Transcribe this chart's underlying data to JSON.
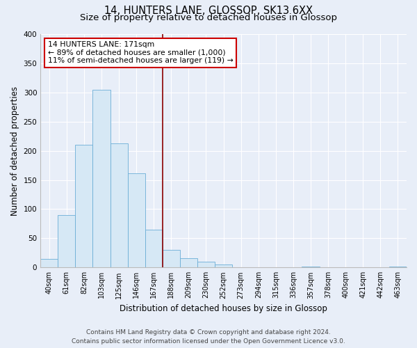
{
  "title": "14, HUNTERS LANE, GLOSSOP, SK13 6XX",
  "subtitle": "Size of property relative to detached houses in Glossop",
  "xlabel": "Distribution of detached houses by size in Glossop",
  "ylabel": "Number of detached properties",
  "bar_labels": [
    "40sqm",
    "61sqm",
    "82sqm",
    "103sqm",
    "125sqm",
    "146sqm",
    "167sqm",
    "188sqm",
    "209sqm",
    "230sqm",
    "252sqm",
    "273sqm",
    "294sqm",
    "315sqm",
    "336sqm",
    "357sqm",
    "378sqm",
    "400sqm",
    "421sqm",
    "442sqm",
    "463sqm"
  ],
  "bar_values": [
    15,
    90,
    210,
    305,
    213,
    162,
    65,
    30,
    16,
    10,
    5,
    0,
    0,
    0,
    0,
    2,
    0,
    0,
    0,
    0,
    2
  ],
  "bar_color": "#d6e8f5",
  "bar_edge_color": "#6baed6",
  "vline_x_index": 6,
  "vline_color": "#8b0000",
  "ylim": [
    0,
    400
  ],
  "yticks": [
    0,
    50,
    100,
    150,
    200,
    250,
    300,
    350,
    400
  ],
  "annotation_title": "14 HUNTERS LANE: 171sqm",
  "annotation_line1": "← 89% of detached houses are smaller (1,000)",
  "annotation_line2": "11% of semi-detached houses are larger (119) →",
  "annotation_box_color": "#ffffff",
  "annotation_box_edge": "#cc0000",
  "footer1": "Contains HM Land Registry data © Crown copyright and database right 2024.",
  "footer2": "Contains public sector information licensed under the Open Government Licence v3.0.",
  "bg_color": "#e8eef8",
  "plot_bg_color": "#e8eef8",
  "grid_color": "#ffffff",
  "title_fontsize": 10.5,
  "subtitle_fontsize": 9.5,
  "axis_label_fontsize": 8.5,
  "tick_fontsize": 7,
  "annotation_fontsize": 7.8,
  "footer_fontsize": 6.5
}
